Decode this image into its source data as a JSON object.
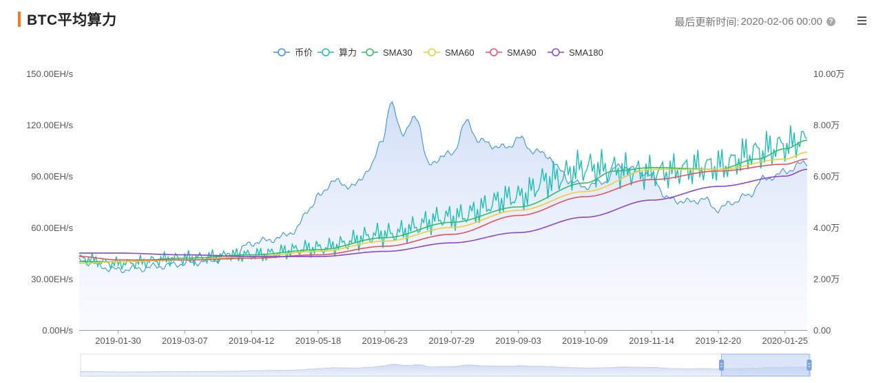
{
  "header": {
    "title": "BTC平均算力",
    "update_label": "最后更新时间:",
    "update_time": "2020-02-06 00:00",
    "help_icon": "question-circle-icon",
    "menu_icon": "hamburger-menu-icon"
  },
  "chart_data": {
    "type": "line",
    "legend_position": "top-center",
    "grid": false,
    "legend": [
      {
        "name": "币价",
        "color": "#3a93e0"
      },
      {
        "name": "算力",
        "color": "#1fbdb5"
      },
      {
        "name": "SMA30",
        "color": "#2fbf5f"
      },
      {
        "name": "SMA60",
        "color": "#f3cc2e"
      },
      {
        "name": "SMA90",
        "color": "#ec4e5a"
      },
      {
        "name": "SMA180",
        "color": "#8a44d6"
      }
    ],
    "y_left": {
      "ticks": [
        "0.00H/s",
        "30.00EH/s",
        "60.00EH/s",
        "90.00EH/s",
        "120.00EH/s",
        "150.00EH/s"
      ],
      "range": [
        0,
        150
      ],
      "unit": "EH/s"
    },
    "y_right": {
      "ticks": [
        "0.00",
        "2.00万",
        "4.00万",
        "6.00万",
        "8.00万",
        "10.00万"
      ],
      "range": [
        0,
        100000
      ]
    },
    "x_ticks": [
      "2019-01-30",
      "2019-03-07",
      "2019-04-12",
      "2019-05-18",
      "2019-06-23",
      "2019-07-29",
      "2019-09-03",
      "2019-10-09",
      "2019-11-14",
      "2019-12-20",
      "2020-01-25"
    ],
    "x_range": [
      "2019-01-09",
      "2020-02-06"
    ],
    "series": [
      {
        "name": "币价",
        "axis": "right",
        "area": true,
        "dates": [
          "2019-01-09",
          "2019-01-30",
          "2019-02-10",
          "2019-02-23",
          "2019-03-07",
          "2019-03-20",
          "2019-04-02",
          "2019-04-12",
          "2019-04-25",
          "2019-05-05",
          "2019-05-14",
          "2019-05-18",
          "2019-05-26",
          "2019-06-06",
          "2019-06-15",
          "2019-06-22",
          "2019-06-26",
          "2019-07-03",
          "2019-07-10",
          "2019-07-17",
          "2019-07-24",
          "2019-07-29",
          "2019-08-06",
          "2019-08-13",
          "2019-08-20",
          "2019-08-28",
          "2019-09-03",
          "2019-09-11",
          "2019-09-19",
          "2019-09-26",
          "2019-10-01",
          "2019-10-09",
          "2019-10-20",
          "2019-10-27",
          "2019-11-07",
          "2019-11-14",
          "2019-11-23",
          "2019-12-04",
          "2019-12-12",
          "2019-12-20",
          "2019-12-28",
          "2020-01-05",
          "2020-01-14",
          "2020-01-20",
          "2020-01-25",
          "2020-02-06"
        ],
        "values": [
          27000,
          23500,
          24000,
          25000,
          26000,
          27000,
          29000,
          34000,
          35500,
          38500,
          48000,
          52000,
          58000,
          56000,
          63000,
          75000,
          88000,
          77000,
          83000,
          64000,
          68000,
          68500,
          81000,
          74000,
          72000,
          71000,
          75000,
          70000,
          68000,
          62000,
          58000,
          56000,
          58000,
          64000,
          62000,
          60000,
          51000,
          50000,
          51000,
          47000,
          50000,
          52500,
          59000,
          60000,
          62000,
          65500
        ]
      },
      {
        "name": "算力",
        "axis": "left",
        "dates": [
          "2019-01-09",
          "2019-01-30",
          "2019-03-07",
          "2019-04-12",
          "2019-05-18",
          "2019-06-23",
          "2019-07-29",
          "2019-09-03",
          "2019-09-20",
          "2019-10-09",
          "2019-11-14",
          "2019-12-20",
          "2020-01-10",
          "2020-01-25",
          "2020-02-06"
        ],
        "values": [
          42,
          39,
          42,
          44,
          48,
          56,
          66,
          78,
          88,
          95,
          92,
          96,
          104,
          108,
          112
        ],
        "amplitude": [
          4,
          4,
          5,
          5,
          6,
          8,
          9,
          10,
          12,
          12,
          11,
          12,
          13,
          12,
          10
        ]
      },
      {
        "name": "SMA30",
        "axis": "left",
        "dates": [
          "2019-01-09",
          "2019-01-30",
          "2019-03-07",
          "2019-04-12",
          "2019-05-18",
          "2019-06-23",
          "2019-07-29",
          "2019-09-03",
          "2019-10-09",
          "2019-10-25",
          "2019-11-14",
          "2019-12-20",
          "2020-01-10",
          "2020-01-25",
          "2020-02-06"
        ],
        "values": [
          40,
          40,
          42,
          44,
          47,
          54,
          63,
          72,
          86,
          93,
          95,
          94,
          100,
          106,
          111
        ]
      },
      {
        "name": "SMA60",
        "axis": "left",
        "dates": [
          "2019-01-09",
          "2019-01-30",
          "2019-03-07",
          "2019-04-12",
          "2019-05-18",
          "2019-06-23",
          "2019-07-29",
          "2019-09-03",
          "2019-10-09",
          "2019-11-14",
          "2019-12-20",
          "2020-01-25",
          "2020-02-06"
        ],
        "values": [
          39,
          40,
          41,
          43,
          46,
          52,
          60,
          70,
          81,
          94,
          94,
          100,
          104
        ]
      },
      {
        "name": "SMA90",
        "axis": "left",
        "dates": [
          "2019-01-09",
          "2019-01-30",
          "2019-03-07",
          "2019-04-12",
          "2019-05-18",
          "2019-06-23",
          "2019-07-29",
          "2019-09-03",
          "2019-10-09",
          "2019-11-14",
          "2019-12-20",
          "2020-01-25",
          "2020-02-06"
        ],
        "values": [
          43,
          41,
          41,
          42,
          44,
          49,
          56,
          67,
          78,
          88,
          93,
          97,
          100
        ]
      },
      {
        "name": "SMA180",
        "axis": "left",
        "dates": [
          "2019-01-09",
          "2019-01-30",
          "2019-03-07",
          "2019-04-12",
          "2019-05-18",
          "2019-06-23",
          "2019-07-29",
          "2019-09-03",
          "2019-10-09",
          "2019-11-14",
          "2019-12-20",
          "2020-01-25",
          "2020-02-06"
        ],
        "values": [
          45,
          45,
          44,
          43,
          43,
          46,
          51,
          57,
          66,
          76,
          84,
          90,
          94
        ]
      }
    ],
    "slider_range": [
      "2019-12-20",
      "2020-02-06"
    ]
  }
}
